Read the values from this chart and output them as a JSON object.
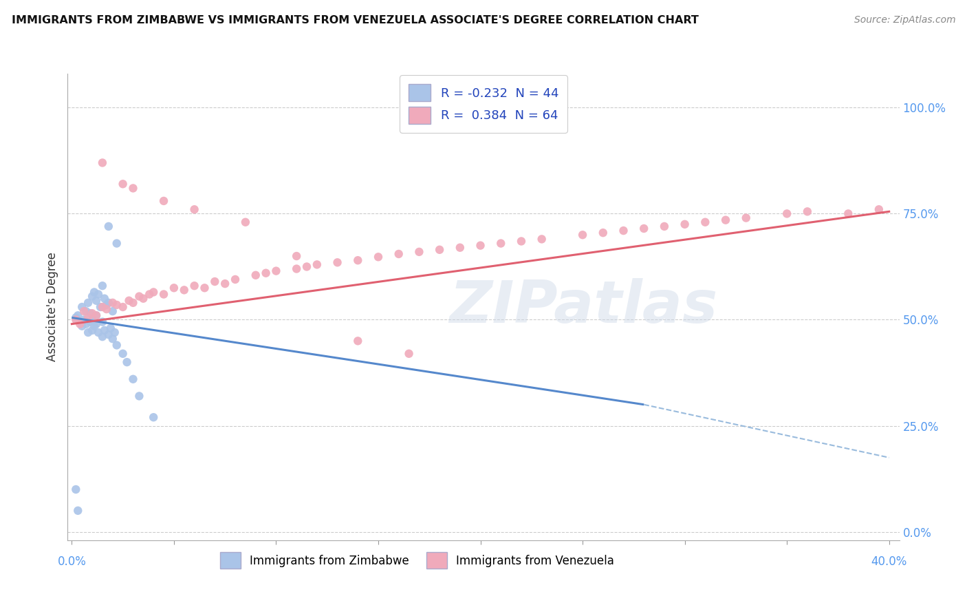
{
  "title": "IMMIGRANTS FROM ZIMBABWE VS IMMIGRANTS FROM VENEZUELA ASSOCIATE'S DEGREE CORRELATION CHART",
  "source": "Source: ZipAtlas.com",
  "ylabel_label": "Associate's Degree",
  "legend1_label": "Immigrants from Zimbabwe",
  "legend2_label": "Immigrants from Venezuela",
  "r1": -0.232,
  "n1": 44,
  "r2": 0.384,
  "n2": 64,
  "color_blue": "#aac4e8",
  "color_pink": "#f0aabb",
  "color_blue_line": "#5588cc",
  "color_pink_line": "#e06070",
  "color_dashed": "#99bbdd",
  "xlim": [
    0.0,
    0.4
  ],
  "ylim": [
    0.0,
    1.05
  ],
  "yticks": [
    0.0,
    0.25,
    0.5,
    0.75,
    1.0
  ],
  "ytick_labels": [
    "0.0%",
    "25.0%",
    "50.0%",
    "75.0%",
    "100.0%"
  ],
  "line_zim_x0": 0.0,
  "line_zim_y0": 0.505,
  "line_zim_x1": 0.28,
  "line_zim_y1": 0.3,
  "line_zim_dash_x1": 0.4,
  "line_zim_dash_y1": 0.175,
  "line_ven_x0": 0.0,
  "line_ven_y0": 0.49,
  "line_ven_x1": 0.4,
  "line_ven_y1": 0.755,
  "zim_x": [
    0.002,
    0.003,
    0.005,
    0.005,
    0.006,
    0.007,
    0.007,
    0.008,
    0.008,
    0.009,
    0.009,
    0.01,
    0.01,
    0.01,
    0.011,
    0.011,
    0.012,
    0.012,
    0.012,
    0.013,
    0.013,
    0.014,
    0.015,
    0.015,
    0.015,
    0.016,
    0.016,
    0.017,
    0.018,
    0.018,
    0.019,
    0.02,
    0.02,
    0.021,
    0.022,
    0.025,
    0.027,
    0.03,
    0.033,
    0.04,
    0.002,
    0.003,
    0.018,
    0.022
  ],
  "zim_y": [
    0.505,
    0.51,
    0.53,
    0.485,
    0.5,
    0.52,
    0.49,
    0.54,
    0.47,
    0.515,
    0.495,
    0.555,
    0.475,
    0.5,
    0.565,
    0.485,
    0.545,
    0.51,
    0.49,
    0.56,
    0.47,
    0.53,
    0.58,
    0.495,
    0.46,
    0.55,
    0.475,
    0.535,
    0.465,
    0.54,
    0.48,
    0.52,
    0.455,
    0.47,
    0.44,
    0.42,
    0.4,
    0.36,
    0.32,
    0.27,
    0.1,
    0.05,
    0.72,
    0.68
  ],
  "ven_x": [
    0.002,
    0.004,
    0.006,
    0.008,
    0.01,
    0.012,
    0.015,
    0.017,
    0.02,
    0.022,
    0.025,
    0.028,
    0.03,
    0.033,
    0.035,
    0.038,
    0.04,
    0.045,
    0.05,
    0.055,
    0.06,
    0.065,
    0.07,
    0.075,
    0.08,
    0.09,
    0.095,
    0.1,
    0.11,
    0.115,
    0.12,
    0.13,
    0.14,
    0.15,
    0.16,
    0.17,
    0.18,
    0.19,
    0.2,
    0.21,
    0.22,
    0.23,
    0.25,
    0.26,
    0.27,
    0.28,
    0.29,
    0.3,
    0.31,
    0.32,
    0.33,
    0.35,
    0.36,
    0.015,
    0.025,
    0.03,
    0.045,
    0.06,
    0.085,
    0.11,
    0.14,
    0.165,
    0.38,
    0.395
  ],
  "ven_y": [
    0.5,
    0.49,
    0.52,
    0.505,
    0.515,
    0.51,
    0.53,
    0.525,
    0.54,
    0.535,
    0.53,
    0.545,
    0.54,
    0.555,
    0.55,
    0.56,
    0.565,
    0.56,
    0.575,
    0.57,
    0.58,
    0.575,
    0.59,
    0.585,
    0.595,
    0.605,
    0.61,
    0.615,
    0.62,
    0.625,
    0.63,
    0.635,
    0.64,
    0.648,
    0.655,
    0.66,
    0.665,
    0.67,
    0.675,
    0.68,
    0.685,
    0.69,
    0.7,
    0.705,
    0.71,
    0.715,
    0.72,
    0.725,
    0.73,
    0.735,
    0.74,
    0.75,
    0.755,
    0.87,
    0.82,
    0.81,
    0.78,
    0.76,
    0.73,
    0.65,
    0.45,
    0.42,
    0.75,
    0.76
  ]
}
